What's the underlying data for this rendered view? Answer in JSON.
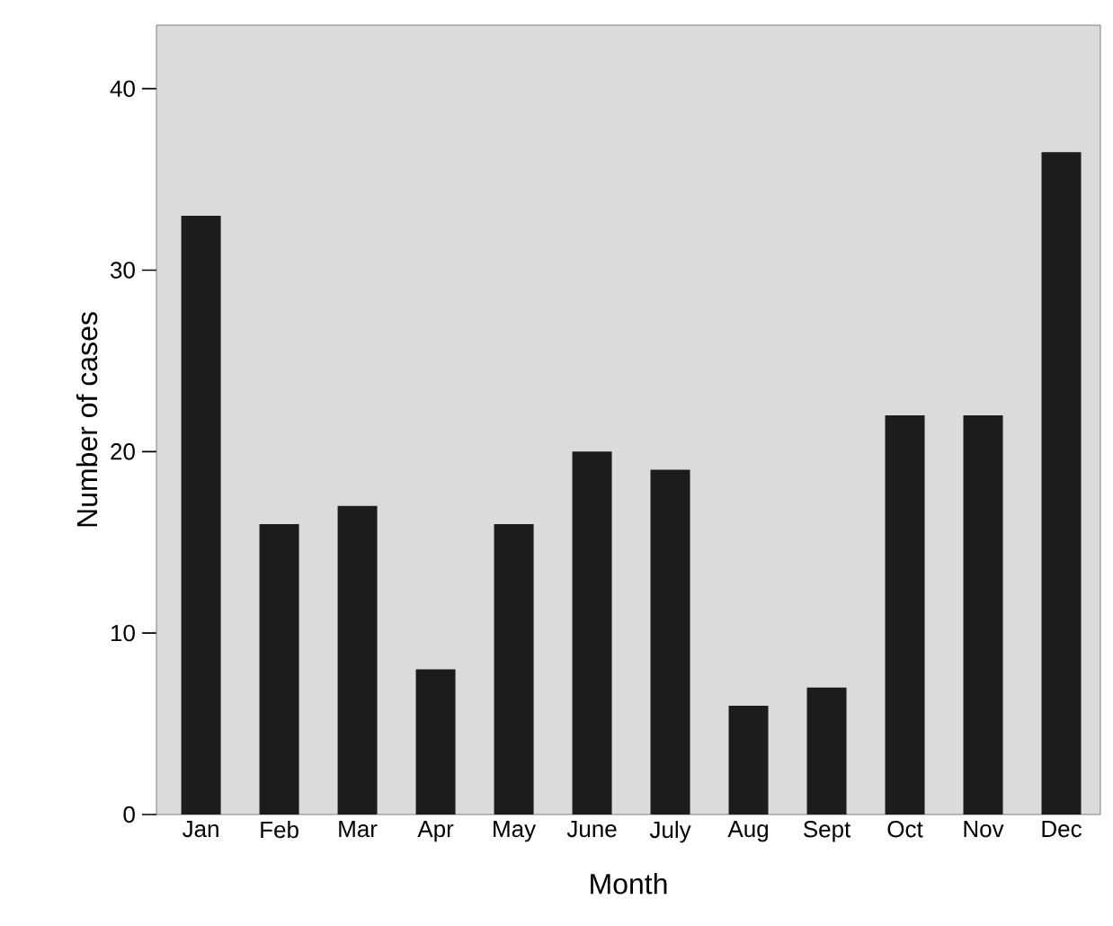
{
  "chart_data": {
    "type": "bar",
    "xlabel": "Month",
    "ylabel": "Number of cases",
    "categories": [
      "Jan",
      "Feb",
      "Mar",
      "Apr",
      "May",
      "June",
      "July",
      "Aug",
      "Sept",
      "Oct",
      "Nov",
      "Dec"
    ],
    "values": [
      33,
      16,
      17,
      8,
      16,
      20,
      19,
      6,
      7,
      22,
      22,
      36.5
    ],
    "color": "#1c1c1c",
    "ylim": [
      0,
      43.5
    ],
    "yticks": [
      0,
      10,
      20,
      30,
      40
    ]
  }
}
